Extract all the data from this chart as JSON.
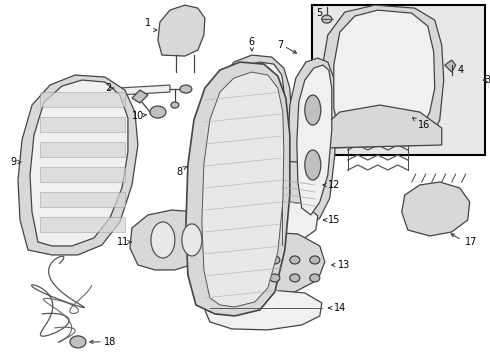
{
  "bg_color": "#ffffff",
  "inset_bg": "#e8e8e8",
  "ec": "#444444",
  "fc_light": "#f0f0f0",
  "fc_mid": "#d8d8d8",
  "fc_dark": "#c0c0c0",
  "lw_main": 0.9,
  "lw_thin": 0.6,
  "label_fs": 7.0,
  "figsize": [
    4.9,
    3.6
  ],
  "dpi": 100
}
